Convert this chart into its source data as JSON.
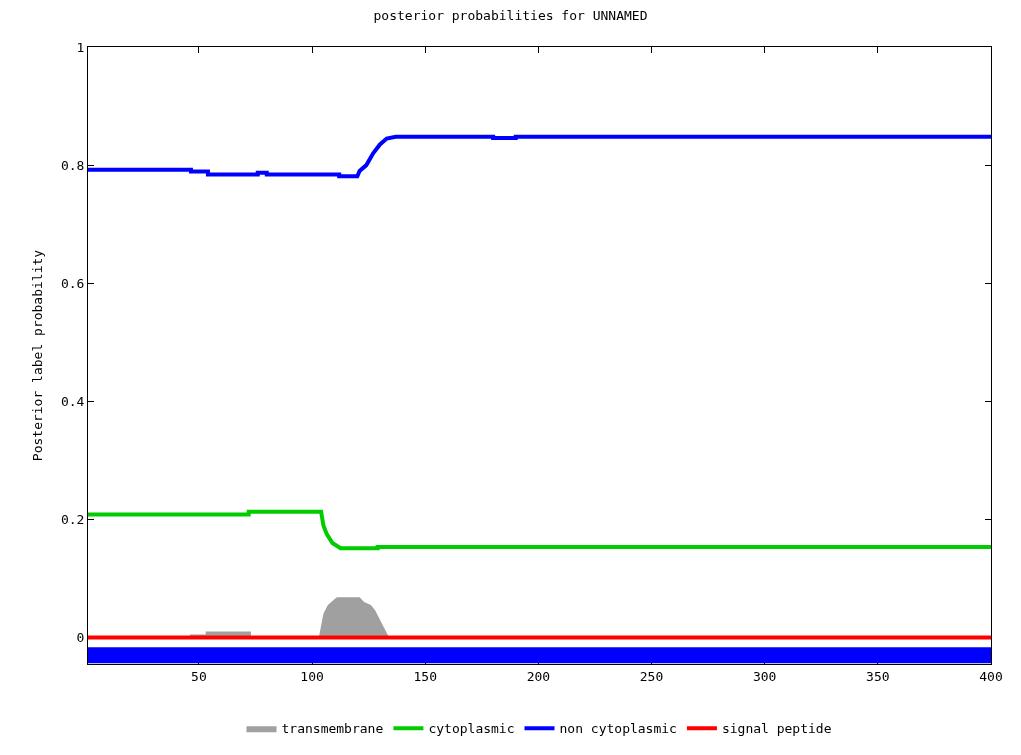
{
  "chart_data": {
    "type": "line",
    "title": "posterior probabilities for UNNAMED",
    "ylabel": "Posterior label probability",
    "xlim": [
      1,
      400
    ],
    "ylim": [
      -0.045,
      1
    ],
    "xticks": [
      50,
      100,
      150,
      200,
      250,
      300,
      350,
      400
    ],
    "yticks": [
      0,
      0.2,
      0.4,
      0.6,
      0.8,
      1
    ],
    "legend": "bottom",
    "series": [
      {
        "name": "transmembrane",
        "type": "area",
        "color": "#a0a0a0",
        "x": [
          46,
          46,
          53,
          53,
          73,
          73,
          null,
          103,
          105,
          107,
          110,
          111,
          121,
          123,
          126,
          128,
          130,
          132,
          134
        ],
        "values": [
          0,
          0.005,
          0.005,
          0.01,
          0.01,
          0,
          null,
          0,
          0.04,
          0.055,
          0.065,
          0.068,
          0.068,
          0.06,
          0.055,
          0.045,
          0.03,
          0.015,
          0
        ]
      },
      {
        "name": "cytoplasmic",
        "type": "line",
        "color": "#00cc00",
        "x": [
          1,
          72,
          72,
          104,
          105,
          106.5,
          109,
          112.6,
          129,
          129,
          400
        ],
        "values": [
          0.208,
          0.208,
          0.213,
          0.213,
          0.19,
          0.175,
          0.16,
          0.151,
          0.151,
          0.153,
          0.153
        ]
      },
      {
        "name": "non cytoplasmic",
        "color": "#0000ff",
        "x": [
          1,
          46.5,
          46.5,
          54,
          54,
          76,
          76,
          80,
          80,
          112,
          112,
          120,
          121,
          124,
          127,
          130,
          133,
          137,
          180,
          180,
          190,
          190,
          400
        ],
        "values": [
          0.792,
          0.792,
          0.789,
          0.789,
          0.784,
          0.784,
          0.787,
          0.787,
          0.784,
          0.784,
          0.781,
          0.781,
          0.79,
          0.8,
          0.82,
          0.835,
          0.845,
          0.848,
          0.848,
          0.846,
          0.846,
          0.848,
          0.848
        ]
      },
      {
        "name": "signal peptide",
        "color": "#ff0000",
        "x": [
          1,
          400
        ],
        "values": [
          0,
          0
        ]
      },
      {
        "color": "#0000ff",
        "x": [
          1,
          400
        ],
        "values": [
          -0.03,
          -0.03
        ]
      }
    ]
  }
}
